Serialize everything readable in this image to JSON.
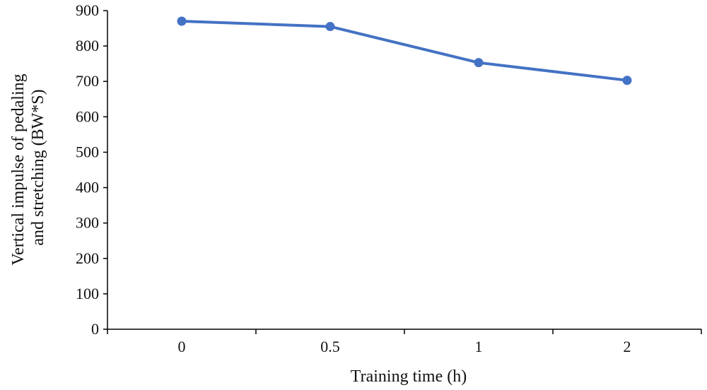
{
  "chart_data": {
    "type": "line",
    "categories": [
      "0",
      "0.5",
      "1",
      "2"
    ],
    "series": [
      {
        "values": [
          870,
          855,
          753,
          703
        ]
      }
    ],
    "xlabel": "Training time (h)",
    "ylabel_lines": [
      "Vertical impulse of pedaling",
      "and stretching (BW*S)"
    ],
    "ylim": [
      0,
      900
    ],
    "yticks": [
      0,
      100,
      200,
      300,
      400,
      500,
      600,
      700,
      800,
      900
    ],
    "grid": false,
    "legend": "none"
  },
  "colors": {
    "line": "#4472C4",
    "axis": "#000000"
  }
}
